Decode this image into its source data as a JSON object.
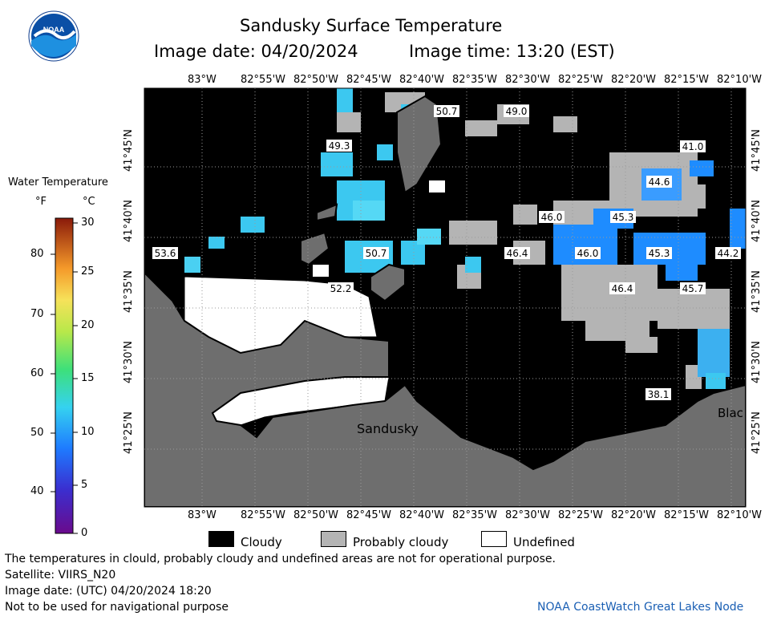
{
  "header": {
    "title": "Sandusky Surface Temperature",
    "image_date": "Image date: 04/20/2024",
    "image_time": "Image time: 13:20 (EST)"
  },
  "logo": {
    "text": "NOAA",
    "icon": "noaa-logo-icon"
  },
  "colorbar": {
    "title": "Water Temperature",
    "unit_f": "°F",
    "unit_c": "°C",
    "f_ticks": [
      "80",
      "70",
      "60",
      "50",
      "40"
    ],
    "c_ticks": [
      "30",
      "25",
      "20",
      "15",
      "10",
      "5",
      "0"
    ]
  },
  "axes": {
    "top_lon": [
      "83°W",
      "82°55'W",
      "82°50'W",
      "82°45'W",
      "82°40'W",
      "82°35'W",
      "82°30'W",
      "82°25'W",
      "82°20'W",
      "82°15'W",
      "82°10'W"
    ],
    "bottom_lon": [
      "83°W",
      "82°55'W",
      "82°50'W",
      "82°45'W",
      "82°40'W",
      "82°35'W",
      "82°30'W",
      "82°25'W",
      "82°20'W",
      "82°15'W",
      "82°10'W"
    ],
    "lat": [
      "41°45'N",
      "41°40'N",
      "41°35'N",
      "41°30'N",
      "41°25'N"
    ]
  },
  "temperature_labels": [
    "50.7",
    "49.0",
    "49.3",
    "41.0",
    "44.6",
    "46.0",
    "45.3",
    "53.6",
    "50.7",
    "46.4",
    "46.0",
    "45.3",
    "44.2",
    "52.2",
    "46.4",
    "45.7",
    "38.1"
  ],
  "places": {
    "sandusky": "Sandusky",
    "black": "Blac"
  },
  "legend": {
    "cloudy": "Cloudy",
    "probably_cloudy": "Probably cloudy",
    "undefined": "Undefined"
  },
  "footer": {
    "disclaimer": "The temperatures in clould, probably cloudy and undefined areas are not for operational purpose.",
    "satellite": "Satellite: VIIRS_N20",
    "utc_date": "Image date: (UTC) 04/20/2024  18:20",
    "navigation": "Not to be used for navigational purpose",
    "credit": "NOAA CoastWatch Great Lakes Node"
  },
  "colors": {
    "cloudy": "#000000",
    "probably_cloudy": "#b4b4b4",
    "land": "#6e6e6e",
    "undefined": "#ffffff",
    "water_a": "#3cc8f0",
    "water_b": "#1e8cff"
  }
}
